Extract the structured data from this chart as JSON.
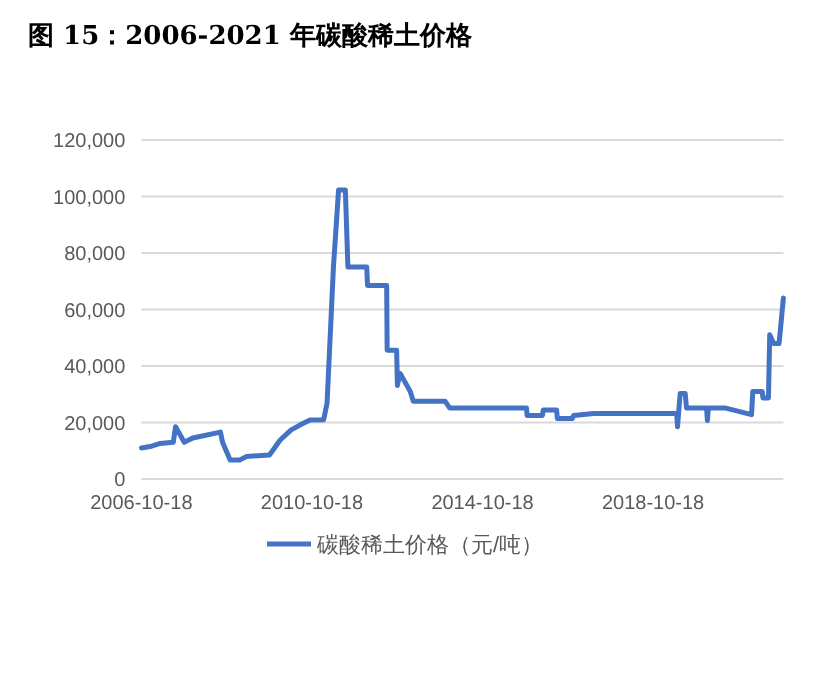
{
  "chart_data": {
    "type": "line",
    "title": "图 15：2006-2021 年碳酸稀土价格",
    "xlim": [
      "2006-10-18",
      "2021-11-07"
    ],
    "xticks": [
      "2006-10-18",
      "2010-10-18",
      "2014-10-18",
      "2018-10-18"
    ],
    "ylim": [
      0,
      120000
    ],
    "yticks": [
      0,
      {
        "value": 20000,
        "label": "20,000"
      },
      {
        "value": 40000,
        "label": "40,000"
      },
      {
        "value": 60000,
        "label": "60,000"
      },
      {
        "value": 80000,
        "label": "80,000"
      },
      {
        "value": 100000,
        "label": "100,000"
      },
      {
        "value": 120000,
        "label": "120,000"
      }
    ],
    "grid": "y",
    "legend": "bottom",
    "marker": "none",
    "line_style": "solid",
    "series": [
      {
        "name": "碳酸稀土价格（元/吨）",
        "color": "#4472c4",
        "x": [
          "2006-10-18",
          "2007-01-01",
          "2007-03-28",
          "2007-07-18",
          "2007-08-07",
          "2007-10-20",
          "2008-01-01",
          "2008-08-25",
          "2008-09-12",
          "2008-11-16",
          "2009-02-06",
          "2009-04-08",
          "2009-10-19",
          "2010-01-19",
          "2010-04-20",
          "2010-07-02",
          "2010-10-01",
          "2011-01-26",
          "2011-02-24",
          "2011-04-20",
          "2011-06-03",
          "2011-07-31",
          "2011-08-22",
          "2012-01-30",
          "2012-02-06",
          "2012-07-19",
          "2012-07-23",
          "2012-10-12",
          "2012-10-19",
          "2012-11-10",
          "2013-02-06",
          "2013-03-04",
          "2013-12-02",
          "2014-01-11",
          "2015-10-30",
          "2015-11-03",
          "2016-03-14",
          "2016-03-21",
          "2016-07-13",
          "2016-07-20",
          "2016-11-25",
          "2016-12-06",
          "2017-05-27",
          "2019-05-08",
          "2019-05-15",
          "2019-06-07",
          "2019-07-20",
          "2019-07-31",
          "2020-01-19",
          "2020-01-26",
          "2020-02-03",
          "2020-07-02",
          "2021-02-07",
          "2021-02-18",
          "2021-05-09",
          "2021-05-16",
          "2021-07-02",
          "2021-07-13",
          "2021-08-15",
          "2021-10-01",
          "2021-11-07"
        ],
        "values": [
          11000,
          11500,
          12600,
          13000,
          18500,
          13000,
          14500,
          16600,
          13000,
          6700,
          6700,
          8000,
          8500,
          13800,
          17300,
          19000,
          20900,
          21000,
          26800,
          75200,
          102300,
          102300,
          75000,
          75000,
          68500,
          68500,
          45600,
          45600,
          33100,
          37400,
          31000,
          27500,
          27500,
          25100,
          25100,
          22500,
          22500,
          24400,
          24400,
          21400,
          21400,
          22500,
          23200,
          23200,
          18500,
          30300,
          30300,
          25100,
          25100,
          20700,
          25100,
          25100,
          22800,
          31000,
          31000,
          28700,
          28700,
          51100,
          48000,
          48000,
          64100
        ]
      }
    ]
  }
}
